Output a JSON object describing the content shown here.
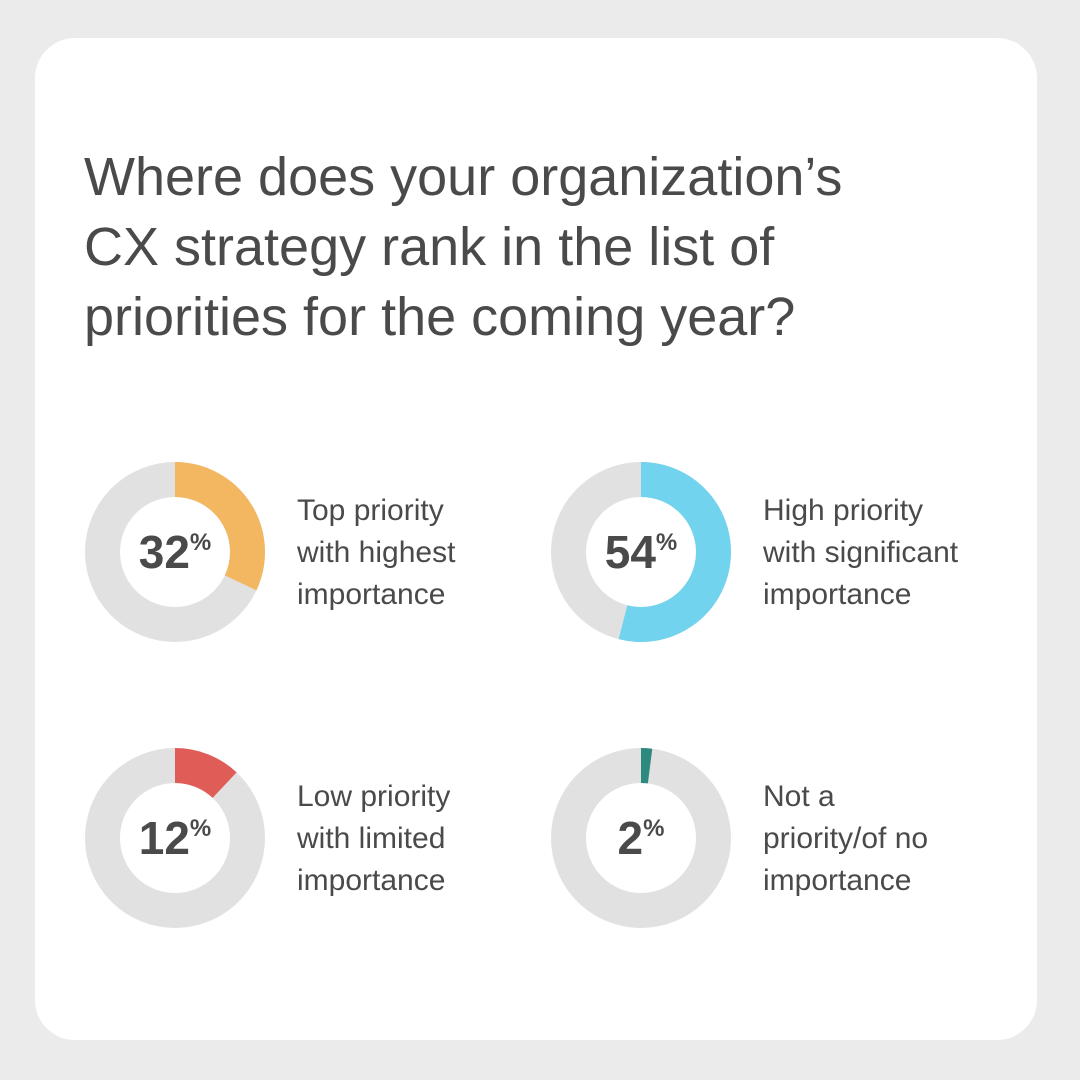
{
  "title_lines": [
    "Where does your organization’s",
    "CX strategy rank in the list of",
    "priorities for the coming year?"
  ],
  "chart_data": [
    {
      "type": "donut",
      "value": 32,
      "unit": "%",
      "color": "#f3b661",
      "track_color": "#e1e1e1",
      "label_lines": [
        "Top priority",
        "with highest",
        "importance"
      ]
    },
    {
      "type": "donut",
      "value": 54,
      "unit": "%",
      "color": "#72d3ee",
      "track_color": "#e1e1e1",
      "label_lines": [
        "High priority",
        "with significant",
        "importance"
      ]
    },
    {
      "type": "donut",
      "value": 12,
      "unit": "%",
      "color": "#e05c57",
      "track_color": "#e1e1e1",
      "label_lines": [
        "Low priority",
        "with limited",
        "importance"
      ]
    },
    {
      "type": "donut",
      "value": 2,
      "unit": "%",
      "color": "#2e8a7e",
      "track_color": "#e1e1e1",
      "label_lines": [
        "Not a",
        "priority/of no",
        "importance"
      ]
    }
  ]
}
